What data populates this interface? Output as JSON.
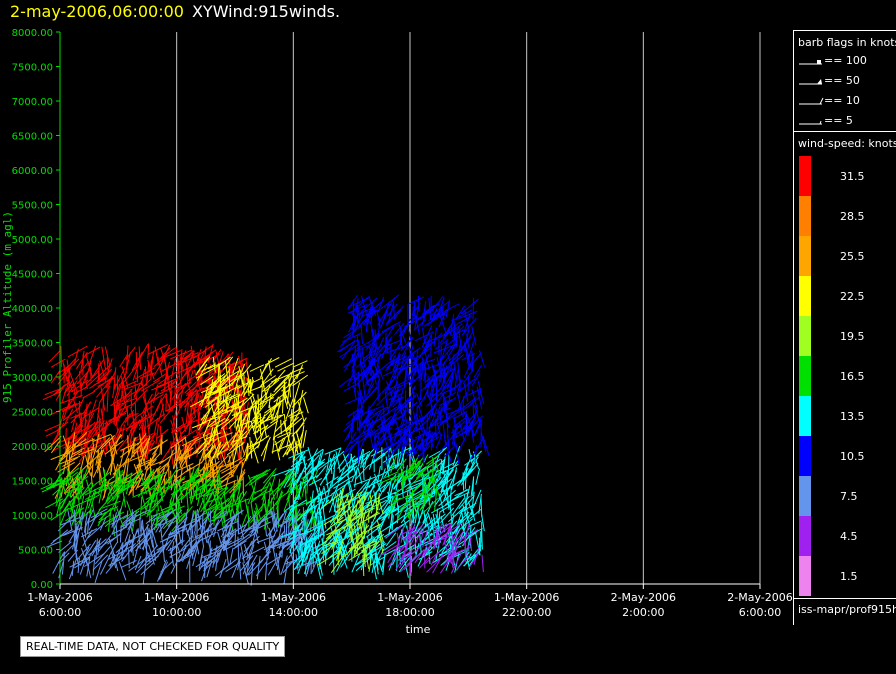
{
  "header": {
    "datetime": "2-may-2006,06:00:00",
    "plot_name": "XYWind:915winds."
  },
  "legend": {
    "barb_title": "barb flags in knots",
    "barb_items": [
      {
        "label": "== 100"
      },
      {
        "label": "== 50"
      },
      {
        "label": "== 10"
      },
      {
        "label": "== 5"
      }
    ],
    "speed_title": "wind-speed: knots",
    "speed_bins": [
      {
        "label": "31.5",
        "color": "#ff0000"
      },
      {
        "label": "28.5",
        "color": "#ff8000"
      },
      {
        "label": "25.5",
        "color": "#ffa500"
      },
      {
        "label": "22.5",
        "color": "#ffff00"
      },
      {
        "label": "19.5",
        "color": "#a0ff20"
      },
      {
        "label": "16.5",
        "color": "#00e000"
      },
      {
        "label": "13.5",
        "color": "#00ffff"
      },
      {
        "label": "10.5",
        "color": "#0000ff"
      },
      {
        "label": "7.5",
        "color": "#6495ed"
      },
      {
        "label": "4.5",
        "color": "#a020f0"
      },
      {
        "label": "1.5",
        "color": "#ee82ee"
      }
    ],
    "footer": "iss-mapr/prof915h"
  },
  "notice": "REAL-TIME DATA, NOT CHECKED FOR QUALITY",
  "chart_data": {
    "type": "scatter",
    "title": "2-may-2006,06:00:00  XYWind:915winds.",
    "ylabel": "915 Profiler Altitude (m agl)",
    "xlabel": "time",
    "ylim": [
      0,
      8000
    ],
    "yticks": [
      "0.00",
      "500.00",
      "1000.00",
      "1500.00",
      "2000.00",
      "2500.00",
      "3000.00",
      "3500.00",
      "4000.00",
      "4500.00",
      "5000.00",
      "5500.00",
      "6000.00",
      "6500.00",
      "7000.00",
      "7500.00",
      "8000.00"
    ],
    "xticks": [
      {
        "date": "1-May-2006",
        "time": "6:00:00"
      },
      {
        "date": "1-May-2006",
        "time": "10:00:00"
      },
      {
        "date": "1-May-2006",
        "time": "14:00:00"
      },
      {
        "date": "1-May-2006",
        "time": "18:00:00"
      },
      {
        "date": "1-May-2006",
        "time": "22:00:00"
      },
      {
        "date": "2-May-2006",
        "time": "2:00:00"
      },
      {
        "date": "2-May-2006",
        "time": "6:00:00"
      }
    ],
    "xlim_hours_from_start": [
      0,
      24
    ],
    "data_end_hours": 14.5,
    "grid": "vertical",
    "barb_layers": [
      {
        "from_h": 0,
        "to_h": 6.5,
        "alt_from": 2000,
        "alt_to": 3500,
        "speed": 30
      },
      {
        "from_h": 0,
        "to_h": 6.5,
        "alt_from": 1500,
        "alt_to": 2200,
        "speed": 24
      },
      {
        "from_h": 0,
        "to_h": 9,
        "alt_from": 1000,
        "alt_to": 1700,
        "speed": 16
      },
      {
        "from_h": 0,
        "to_h": 9,
        "alt_from": 300,
        "alt_to": 1100,
        "speed": 7
      },
      {
        "from_h": 5,
        "to_h": 8.5,
        "alt_from": 2000,
        "alt_to": 3300,
        "speed": 22
      },
      {
        "from_h": 8,
        "to_h": 14.5,
        "alt_from": 400,
        "alt_to": 2000,
        "speed": 12
      },
      {
        "from_h": 9.5,
        "to_h": 11,
        "alt_from": 400,
        "alt_to": 1400,
        "speed": 20
      },
      {
        "from_h": 11.5,
        "to_h": 13,
        "alt_from": 1200,
        "alt_to": 1900,
        "speed": 17
      },
      {
        "from_h": 11.5,
        "to_h": 14.5,
        "alt_from": 400,
        "alt_to": 900,
        "speed": 5
      },
      {
        "from_h": 10,
        "to_h": 14.5,
        "alt_from": 2000,
        "alt_to": 4200,
        "speed": 9
      }
    ]
  }
}
